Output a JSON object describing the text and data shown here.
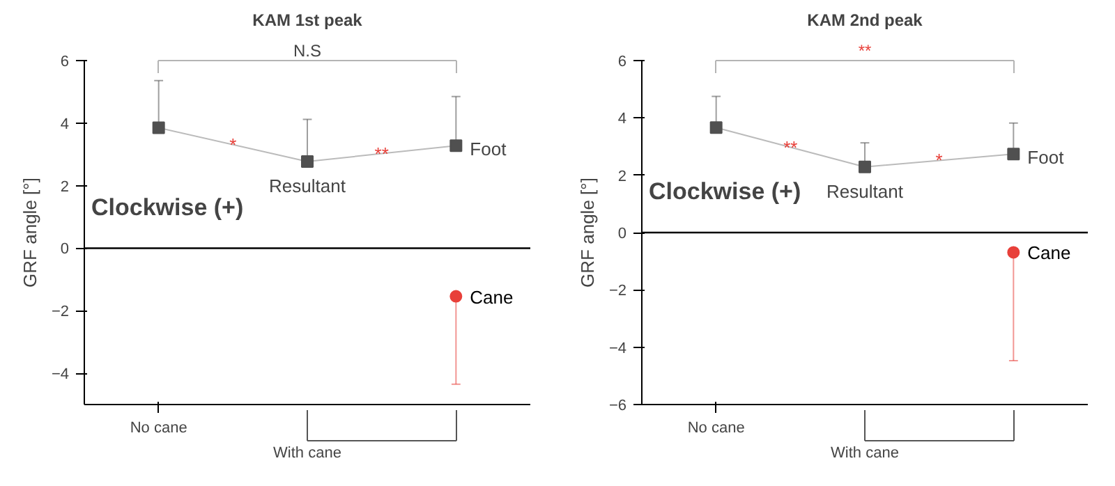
{
  "chart_data": [
    {
      "type": "line",
      "title": "KAM 1st peak",
      "ylabel": "GRF angle [°]",
      "categories": [
        "No cane",
        null,
        null
      ],
      "ylim": [
        -5,
        6
      ],
      "yticks": [
        -4,
        -2,
        0,
        2,
        4,
        6
      ],
      "series": [
        {
          "color": "#505050",
          "values": [
            3.85,
            2.77,
            3.28
          ],
          "errors": [
            [
              3.85,
              5.36
            ],
            [
              2.77,
              4.12
            ],
            [
              3.28,
              4.85
            ]
          ],
          "marker": "square",
          "line_style": "solid"
        },
        {
          "name": "Cane",
          "type": "scatter",
          "color": "#e8403a",
          "values": [
            null,
            null,
            -1.54
          ],
          "errors": [
            null,
            null,
            [
              -4.35,
              -1.54
            ]
          ],
          "marker": "circle"
        }
      ],
      "ref_lines": [
        {
          "axis": "y",
          "value": 0,
          "color": "#000000"
        }
      ],
      "annotations": [
        "*",
        "**",
        "N.S",
        "Clockwise (+)",
        "Resultant",
        "Foot",
        "With cane"
      ]
    },
    {
      "type": "line",
      "title": "KAM 2nd peak",
      "ylabel": "GRF angle [°]",
      "categories": [
        "No cane",
        null,
        null
      ],
      "ylim": [
        -6,
        6
      ],
      "yticks": [
        -6,
        -4,
        -2,
        0,
        2,
        4,
        6
      ],
      "series": [
        {
          "color": "#505050",
          "values": [
            3.66,
            2.29,
            2.74
          ],
          "errors": [
            [
              3.66,
              4.75
            ],
            [
              2.29,
              3.13
            ],
            [
              2.74,
              3.82
            ]
          ],
          "marker": "square",
          "line_style": "solid"
        },
        {
          "name": "Cane",
          "type": "scatter",
          "color": "#e8403a",
          "values": [
            null,
            null,
            -0.69
          ],
          "errors": [
            null,
            null,
            [
              -4.47,
              -0.69
            ]
          ],
          "marker": "circle"
        }
      ],
      "ref_lines": [
        {
          "axis": "y",
          "value": 0,
          "color": "#000000"
        }
      ],
      "annotations": [
        "**",
        "*",
        "**",
        "Clockwise (+)",
        "Resultant",
        "Foot",
        "With cane"
      ]
    }
  ]
}
